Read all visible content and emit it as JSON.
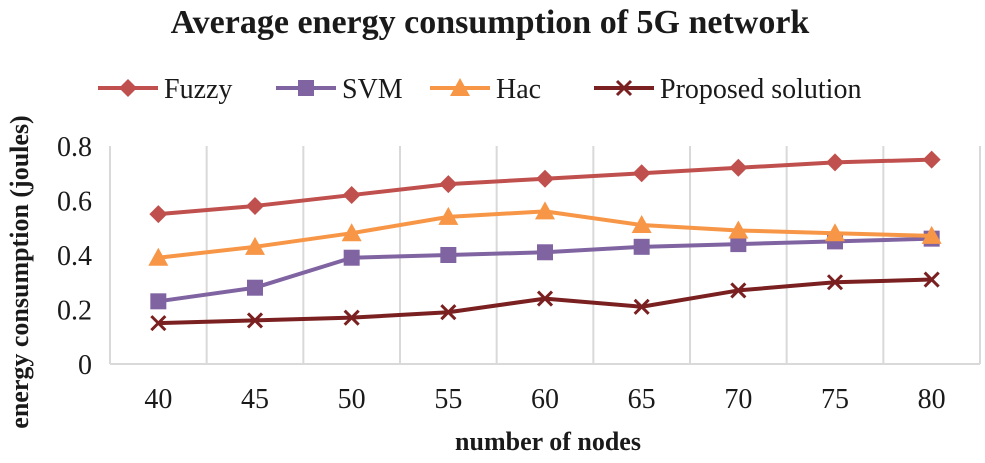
{
  "chart_data": {
    "type": "line",
    "title": "Average energy consumption of 5G network",
    "xlabel": "number of nodes",
    "ylabel": "energy consumption (joules)",
    "categories": [
      "40",
      "45",
      "50",
      "55",
      "60",
      "65",
      "70",
      "75",
      "80"
    ],
    "ylim": [
      0,
      0.8
    ],
    "yticks": [
      "0",
      "0.2",
      "0.4",
      "0.6",
      "0.8"
    ],
    "grid": "vertical",
    "legend": "top",
    "series": [
      {
        "name": "Fuzzy",
        "color": "#c0504d",
        "marker": "diamond",
        "values": [
          0.55,
          0.58,
          0.62,
          0.66,
          0.68,
          0.7,
          0.72,
          0.74,
          0.75
        ]
      },
      {
        "name": "SVM",
        "color": "#8064a2",
        "marker": "square",
        "values": [
          0.23,
          0.28,
          0.39,
          0.4,
          0.41,
          0.43,
          0.44,
          0.45,
          0.46
        ]
      },
      {
        "name": "Hac",
        "color": "#f79646",
        "marker": "triangle",
        "values": [
          0.39,
          0.43,
          0.48,
          0.54,
          0.56,
          0.51,
          0.49,
          0.48,
          0.47
        ]
      },
      {
        "name": "Proposed solution",
        "color": "#7b2020",
        "marker": "x",
        "values": [
          0.15,
          0.16,
          0.17,
          0.19,
          0.24,
          0.21,
          0.27,
          0.3,
          0.31
        ]
      }
    ]
  }
}
